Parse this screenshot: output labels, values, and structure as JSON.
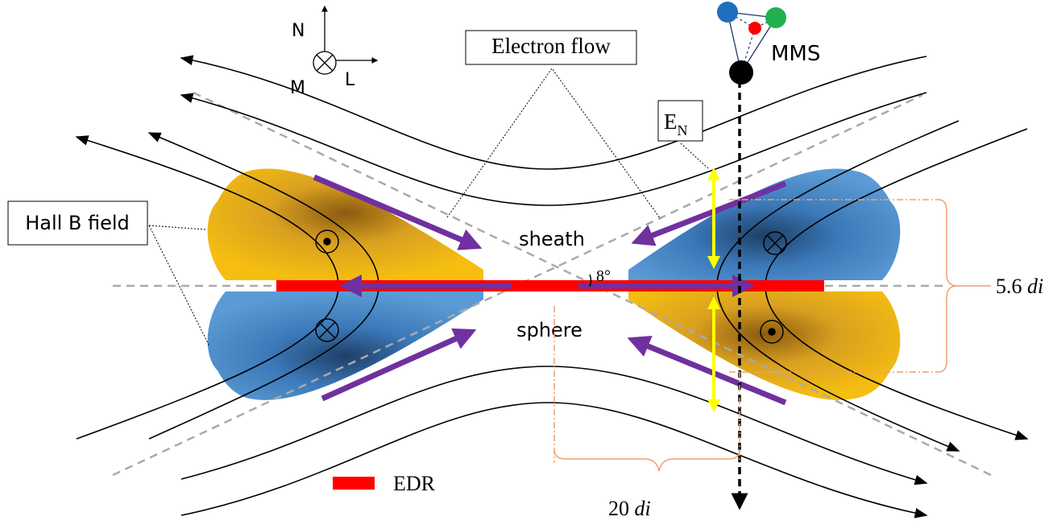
{
  "axes": {
    "n": "N",
    "m": "M",
    "l": "L"
  },
  "callouts": {
    "electron_flow": "Electron flow",
    "hall_b_field": "Hall B field",
    "e_n": {
      "base": "E",
      "sub": "N"
    }
  },
  "spacecraft": "MMS",
  "regions": {
    "top": "sheath",
    "bottom": "sphere"
  },
  "angle": "8°",
  "width_label": {
    "value": "5.6",
    "unit": "di"
  },
  "length_label": {
    "value": "20",
    "unit": "di"
  },
  "legend": {
    "edr": "EDR"
  }
}
